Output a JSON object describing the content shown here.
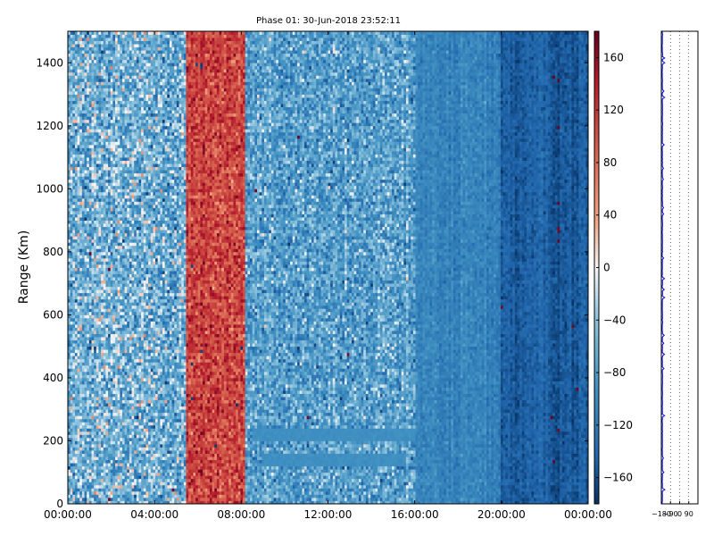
{
  "chart_data": [
    {
      "type": "heatmap",
      "title": "Phase 01: 30-Jun-2018 23:52:11",
      "xlabel": "",
      "ylabel": "Range (Km)",
      "xlim": [
        0,
        24
      ],
      "ylim": [
        0,
        1500
      ],
      "x_tick_labels": [
        "00:00:00",
        "04:00:00",
        "08:00:00",
        "12:00:00",
        "16:00:00",
        "20:00:00",
        "00:00:00"
      ],
      "y_ticks": [
        0,
        200,
        400,
        600,
        800,
        1000,
        1200,
        1400
      ],
      "colorbar": {
        "range": [
          -180,
          180
        ],
        "ticks": [
          -160,
          -120,
          -80,
          -40,
          0,
          40,
          80,
          120,
          160
        ],
        "tick_labels": [
          "−160",
          "−120",
          "−80",
          "−40",
          "0",
          "40",
          "80",
          "120",
          "160"
        ],
        "colormap": "RdBu_r",
        "color_low": "#08306b",
        "color_mid": "#f7f7f7",
        "color_high": "#67001f"
      },
      "column_regions": [
        {
          "from_hour": 0.0,
          "to_hour": 5.5,
          "pattern": "mixed phases, mostly blue with red speckles",
          "mean_phase": -60,
          "spread": 140
        },
        {
          "from_hour": 5.5,
          "to_hour": 8.2,
          "pattern": "predominantly red (positive phase)",
          "mean_phase": 110,
          "spread": 90
        },
        {
          "from_hour": 8.2,
          "to_hour": 16.0,
          "pattern": "blue with sparse red speckles",
          "mean_phase": -80,
          "spread": 110
        },
        {
          "from_hour": 16.0,
          "to_hour": 20.0,
          "pattern": "uniform light blue",
          "mean_phase": -110,
          "spread": 40
        },
        {
          "from_hour": 20.0,
          "to_hour": 24.0,
          "pattern": "dark blue",
          "mean_phase": -150,
          "spread": 30
        }
      ],
      "features": [
        {
          "description": "horizontal light-blue band",
          "from_hour": 8.5,
          "to_hour": 16.0,
          "range_km": [
            200,
            240
          ]
        },
        {
          "description": "horizontal light-blue band",
          "from_hour": 9.0,
          "to_hour": 15.5,
          "range_km": [
            120,
            160
          ]
        }
      ],
      "grid": false
    },
    {
      "type": "line",
      "title": "",
      "xlabel": "",
      "ylabel": "",
      "xlim": [
        -180,
        180
      ],
      "ylim": [
        0,
        1500
      ],
      "x_tick_labels": [
        "−180",
        "−90",
        "0",
        "90"
      ],
      "grid": true,
      "series": [
        {
          "name": "",
          "color": "#0000ff",
          "description": "phase profile vs range, hovering near −180",
          "x_center": -170
        }
      ]
    }
  ]
}
